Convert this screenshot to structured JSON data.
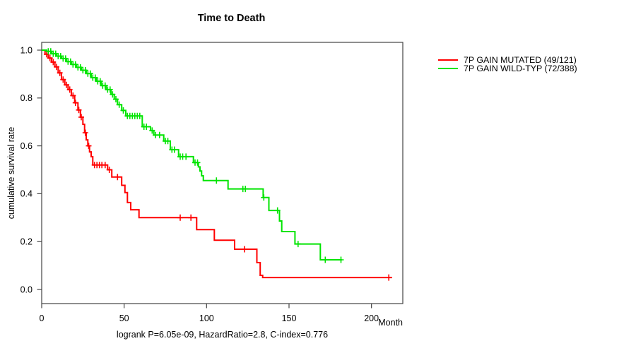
{
  "chart_data": {
    "type": "line",
    "subtype": "kaplan-meier-step",
    "title": "Time to Death",
    "xlabel": "Month",
    "ylabel": "cumulative survival rate",
    "footer": "logrank P=6.05e-09, HazardRatio=2.8, C-index=0.776",
    "x_ticks": [
      0,
      50,
      100,
      150,
      200
    ],
    "y_tick_labels": [
      "0.0",
      "0.2",
      "0.4",
      "0.6",
      "0.8",
      "1.0"
    ],
    "xlim": [
      0,
      219
    ],
    "ylim": [
      0,
      1
    ],
    "grid": false,
    "legend_position": "right-outside",
    "axis_color": "#444444",
    "legend": [
      {
        "label": "7P GAIN MUTATED (49/121)",
        "color": "#FF0000"
      },
      {
        "label": "7P GAIN WILD-TYP (72/388)",
        "color": "#00E400"
      }
    ],
    "series": [
      {
        "name": "7P GAIN MUTATED (49/121)",
        "color": "#FF0000",
        "steps": [
          [
            0,
            1.0
          ],
          [
            2,
            0.983
          ],
          [
            4,
            0.967
          ],
          [
            6,
            0.95
          ],
          [
            8,
            0.93
          ],
          [
            10,
            0.905
          ],
          [
            12,
            0.877
          ],
          [
            14,
            0.855
          ],
          [
            16,
            0.835
          ],
          [
            18,
            0.81
          ],
          [
            20,
            0.78
          ],
          [
            22,
            0.75
          ],
          [
            23.5,
            0.72
          ],
          [
            25,
            0.69
          ],
          [
            26,
            0.655
          ],
          [
            27,
            0.625
          ],
          [
            28,
            0.6
          ],
          [
            29,
            0.575
          ],
          [
            30,
            0.555
          ],
          [
            31,
            0.52
          ],
          [
            40,
            0.5
          ],
          [
            42.5,
            0.47
          ],
          [
            48.5,
            0.435
          ],
          [
            50.5,
            0.405
          ],
          [
            52,
            0.363
          ],
          [
            54,
            0.333
          ],
          [
            59,
            0.3
          ],
          [
            94,
            0.25
          ],
          [
            104.7,
            0.206
          ],
          [
            117,
            0.168
          ],
          [
            130.5,
            0.112
          ],
          [
            132.5,
            0.059
          ],
          [
            134,
            0.05
          ],
          [
            212.5,
            0.05
          ]
        ],
        "censor_months": [
          3,
          5,
          7,
          9,
          11,
          13,
          15,
          17,
          19,
          20.5,
          22.5,
          24,
          26.5,
          28.5,
          32,
          33.5,
          35,
          36.5,
          38.5,
          41,
          46,
          84,
          90.5,
          123,
          210.5
        ]
      },
      {
        "name": "7P GAIN WILD-TYP (72/388)",
        "color": "#00E400",
        "steps": [
          [
            0,
            1.0
          ],
          [
            3,
            0.995
          ],
          [
            6,
            0.985
          ],
          [
            9,
            0.975
          ],
          [
            12,
            0.965
          ],
          [
            15,
            0.952
          ],
          [
            18,
            0.94
          ],
          [
            21,
            0.928
          ],
          [
            24,
            0.916
          ],
          [
            27,
            0.902
          ],
          [
            30,
            0.885
          ],
          [
            33,
            0.87
          ],
          [
            36,
            0.852
          ],
          [
            39,
            0.835
          ],
          [
            42,
            0.815
          ],
          [
            44,
            0.795
          ],
          [
            46,
            0.772
          ],
          [
            48.5,
            0.748
          ],
          [
            51,
            0.725
          ],
          [
            61,
            0.68
          ],
          [
            66,
            0.664
          ],
          [
            68,
            0.645
          ],
          [
            74,
            0.62
          ],
          [
            78,
            0.584
          ],
          [
            83,
            0.555
          ],
          [
            92,
            0.53
          ],
          [
            95,
            0.512
          ],
          [
            96,
            0.495
          ],
          [
            97,
            0.475
          ],
          [
            98,
            0.455
          ],
          [
            113,
            0.42
          ],
          [
            134.3,
            0.384
          ],
          [
            137.8,
            0.33
          ],
          [
            144.2,
            0.286
          ],
          [
            145.6,
            0.242
          ],
          [
            153.6,
            0.19
          ],
          [
            169,
            0.124
          ],
          [
            182,
            0.124
          ]
        ],
        "censor_months": [
          4,
          5.5,
          7,
          8.5,
          10,
          11.5,
          13,
          14.5,
          16,
          17.5,
          19,
          20.5,
          22,
          23.5,
          25,
          26.5,
          28,
          29.5,
          31,
          32.5,
          34,
          35.5,
          37,
          38.5,
          40,
          41.5,
          43,
          45,
          47,
          49.5,
          52,
          53.5,
          55,
          56.5,
          58,
          59.5,
          62,
          63.5,
          67,
          69,
          71.5,
          75,
          76.5,
          79,
          80.5,
          84,
          85.5,
          87.5,
          93,
          94.5,
          106,
          122,
          123.5,
          134.7,
          143,
          155.5,
          172,
          181.5
        ]
      }
    ]
  }
}
